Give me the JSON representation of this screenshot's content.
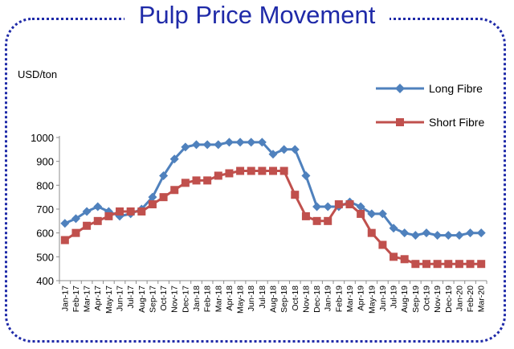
{
  "title": "Pulp Price Movement",
  "chart_data": {
    "type": "line",
    "title": "Pulp Price Movement",
    "ylabel": "USD/ton",
    "xlabel": "",
    "ylim": [
      400,
      1000
    ],
    "yticks": [
      400,
      500,
      600,
      700,
      800,
      900,
      1000
    ],
    "grid": false,
    "legend_position": "top-right",
    "colors": {
      "long_fibre": "#4f81bd",
      "short_fibre": "#c0504d",
      "frame": "#1f2aa8"
    },
    "x": [
      "Jan-17",
      "Feb-17",
      "Mar-17",
      "Apr-17",
      "May-17",
      "Jun-17",
      "Jul-17",
      "Aug-17",
      "Sep-17",
      "Oct-17",
      "Nov-17",
      "Dec-17",
      "Jan-18",
      "Feb-18",
      "Mar-18",
      "Apr-18",
      "May-18",
      "Jun-18",
      "Jul-18",
      "Aug-18",
      "Sep-18",
      "Oct-18",
      "Nov-18",
      "Dec-18",
      "Jan-19",
      "Feb-19",
      "Mar-19",
      "Apr-19",
      "May-19",
      "Jun-19",
      "Jul-19",
      "Aug-19",
      "Sep-19",
      "Oct-19",
      "Nov-19",
      "Dec-19",
      "Jan-20",
      "Feb-20",
      "Mar-20"
    ],
    "series": [
      {
        "name": "Long Fibre",
        "marker": "diamond",
        "values": [
          640,
          660,
          690,
          710,
          690,
          670,
          680,
          700,
          750,
          840,
          910,
          960,
          970,
          970,
          970,
          980,
          980,
          980,
          980,
          930,
          950,
          950,
          840,
          710,
          710,
          710,
          730,
          710,
          680,
          680,
          620,
          600,
          590,
          600,
          590,
          590,
          590,
          600,
          600
        ]
      },
      {
        "name": "Short Fibre",
        "marker": "square",
        "values": [
          570,
          600,
          630,
          650,
          670,
          690,
          690,
          690,
          720,
          750,
          780,
          810,
          820,
          820,
          840,
          850,
          860,
          860,
          860,
          860,
          860,
          760,
          670,
          650,
          650,
          720,
          720,
          680,
          600,
          550,
          500,
          490,
          470,
          470,
          470,
          470,
          470,
          470,
          470
        ]
      }
    ]
  }
}
